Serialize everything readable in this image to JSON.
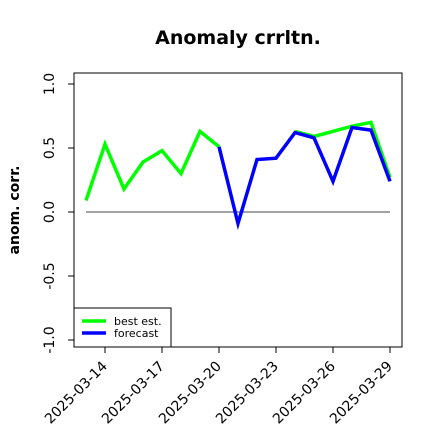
{
  "chart_data": {
    "type": "line",
    "title": "Anomaly crrltn.",
    "ylabel": "anom. corr.",
    "xlabel": "",
    "ylim": [
      -1.0,
      1.0
    ],
    "yticks": [
      "-1.0",
      "-0.5",
      "0.0",
      "0.5",
      "1.0"
    ],
    "ytick_values": [
      -1.0,
      -0.5,
      0.0,
      0.5,
      1.0
    ],
    "x": [
      "2025-03-13 00",
      "2025-03-13 12",
      "2025-03-14 00",
      "2025-03-14 12",
      "2025-03-15 00",
      "2025-03-15 12",
      "2025-03-16 00",
      "2025-03-16 12",
      "2025-03-17 00",
      "2025-03-17 12",
      "2025-03-18 00",
      "2025-03-18 12",
      "2025-03-19 00",
      "2025-03-19 12",
      "2025-03-20 00",
      "2025-03-20 12",
      "2025-03-21 00",
      "2025-03-21 12",
      "2025-03-22 00",
      "2025-03-22 12",
      "2025-03-23 00",
      "2025-03-23 12",
      "2025-03-24 00",
      "2025-03-24 12",
      "2025-03-25 00",
      "2025-03-25 12",
      "2025-03-26 00",
      "2025-03-26 12",
      "2025-03-27 00",
      "2025-03-27 12",
      "2025-03-28 00",
      "2025-03-28 12",
      "2025-03-29 00"
    ],
    "xticks": [
      {
        "label": "2025-03-14",
        "index": 2,
        "color": "#000000"
      },
      {
        "label": "2025-03-17",
        "index": 8,
        "color": "#000000"
      },
      {
        "label": "2025-03-20",
        "index": 14,
        "color": "#228B22"
      },
      {
        "label": "2025-03-23",
        "index": 20,
        "color": "#000000"
      },
      {
        "label": "2025-03-26",
        "index": 26,
        "color": "#000000"
      },
      {
        "label": "2025-03-29",
        "index": 32,
        "color": "#000000"
      }
    ],
    "series": [
      {
        "name": "best est.",
        "color": "#00ff00",
        "points": [
          [
            0,
            0.09
          ],
          [
            2,
            0.53
          ],
          [
            4,
            0.18
          ],
          [
            6,
            0.39
          ],
          [
            8,
            0.48
          ],
          [
            10,
            0.3
          ],
          [
            12,
            0.63
          ],
          [
            14,
            0.51
          ]
        ]
      },
      {
        "name": "forecast",
        "color": "#0000ff",
        "points": [
          [
            14,
            0.51
          ],
          [
            16,
            -0.09
          ],
          [
            18,
            0.41
          ],
          [
            20,
            0.42
          ],
          [
            22,
            0.62
          ],
          [
            24,
            0.58
          ],
          [
            26,
            0.24
          ],
          [
            28,
            0.66
          ],
          [
            30,
            0.64
          ],
          [
            32,
            0.24
          ]
        ]
      },
      {
        "name": "",
        "color": "#00ff00",
        "points": [
          [
            22,
            0.63
          ],
          [
            24,
            0.59
          ],
          [
            28,
            0.67
          ],
          [
            30,
            0.7
          ],
          [
            32,
            0.27
          ]
        ]
      }
    ],
    "zero_line": 0.0,
    "grid": false,
    "legend_position": "bottom-left"
  }
}
